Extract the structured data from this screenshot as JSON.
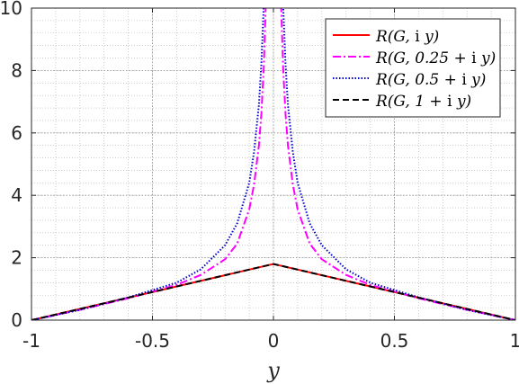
{
  "chart_data": {
    "type": "line",
    "xlabel": "y",
    "ylabel": "",
    "title": "",
    "xlim": [
      -1,
      1
    ],
    "ylim": [
      0,
      10
    ],
    "grid": true,
    "minor_grid": true,
    "legend_position": "top-right",
    "x_ticks": [
      -1,
      -0.5,
      0,
      0.5,
      1
    ],
    "x_tick_labels": [
      "-1",
      "-0.5",
      "0",
      "0.5",
      "1"
    ],
    "y_ticks": [
      0,
      2,
      4,
      6,
      8,
      10
    ],
    "y_tick_labels": [
      "0",
      "2",
      "4",
      "6",
      "8",
      "10"
    ],
    "series": [
      {
        "name": "R(G, i y)",
        "color": "#ff0000",
        "dash": "solid",
        "x": [
          -1,
          -0.5,
          0,
          0.5,
          1
        ],
        "y": [
          0,
          0.9,
          1.8,
          0.9,
          0
        ]
      },
      {
        "name": "R(G, 0.25 + i y)",
        "color": "#ff00ff",
        "dash": "dashdot",
        "x": [
          -1,
          -0.8,
          -0.6,
          -0.4,
          -0.3,
          -0.2,
          -0.15,
          -0.1,
          -0.08,
          -0.06,
          -0.05,
          -0.04,
          -0.03,
          0.03,
          0.04,
          0.05,
          0.06,
          0.08,
          0.1,
          0.15,
          0.2,
          0.3,
          0.4,
          0.6,
          0.8,
          1
        ],
        "y": [
          0,
          0.33,
          0.7,
          1.13,
          1.45,
          1.95,
          2.45,
          3.55,
          4.35,
          5.6,
          6.6,
          8.1,
          10.5,
          10.5,
          8.1,
          6.6,
          5.6,
          4.35,
          3.55,
          2.45,
          1.95,
          1.45,
          1.13,
          0.7,
          0.33,
          0
        ]
      },
      {
        "name": "R(G, 0.5 + i y)",
        "color": "#0000cc",
        "dash": "dotted",
        "x": [
          -1,
          -0.8,
          -0.6,
          -0.4,
          -0.3,
          -0.2,
          -0.15,
          -0.1,
          -0.08,
          -0.06,
          -0.05,
          -0.04,
          -0.03,
          0.03,
          0.04,
          0.05,
          0.06,
          0.08,
          0.1,
          0.15,
          0.2,
          0.3,
          0.4,
          0.6,
          0.8,
          1
        ],
        "y": [
          0,
          0.33,
          0.73,
          1.2,
          1.63,
          2.4,
          3.1,
          4.4,
          5.4,
          6.9,
          8.2,
          10.1,
          12,
          12,
          10.1,
          8.2,
          6.9,
          5.4,
          4.4,
          3.1,
          2.4,
          1.63,
          1.2,
          0.73,
          0.33,
          0
        ]
      },
      {
        "name": "R(G, 1 + i y)",
        "color": "#000000",
        "dash": "dashed",
        "x": [
          -1,
          -0.5,
          0,
          0.5,
          1
        ],
        "y": [
          0,
          0.9,
          1.8,
          0.9,
          0
        ]
      }
    ]
  },
  "legend": {
    "entries": [
      {
        "prefix": "R(G,",
        "arg": "i",
        "suffix": "y)"
      },
      {
        "prefix": "R(G, 0.25 +",
        "arg": "i",
        "suffix": "y)"
      },
      {
        "prefix": "R(G, 0.5 +",
        "arg": "i",
        "suffix": "y)"
      },
      {
        "prefix": "R(G, 1 +",
        "arg": "i",
        "suffix": "y)"
      }
    ]
  }
}
